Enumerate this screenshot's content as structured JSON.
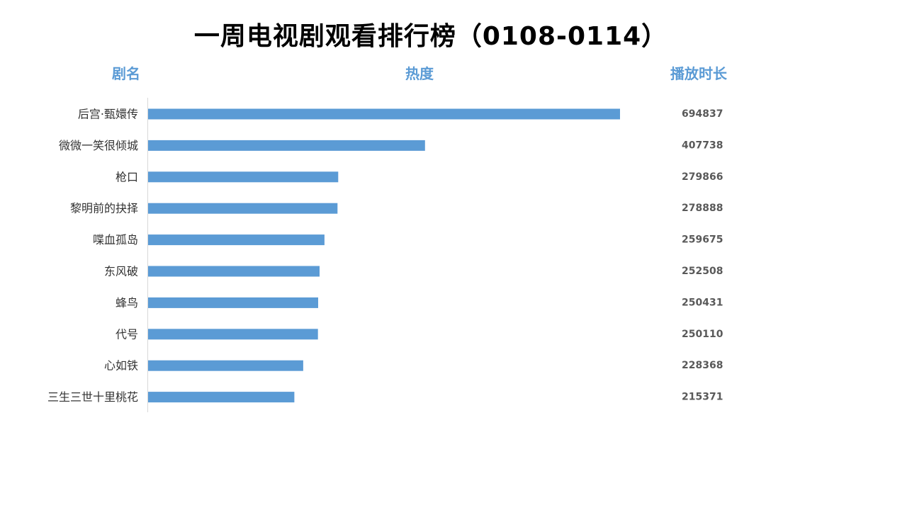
{
  "title": "一周电视剧观看排行榜（0108-0114）",
  "headers": {
    "name": "剧名",
    "heat": "热度",
    "duration": "播放时长"
  },
  "colors": {
    "bar": "#5b9bd5",
    "header": "#5b9bd5",
    "axis": "#d9d9d9"
  },
  "chart_data": {
    "type": "bar",
    "orientation": "horizontal",
    "categories": [
      "后宫·甄嬛传",
      "微微一笑很倾城",
      "枪口",
      "黎明前的抉择",
      "喋血孤岛",
      "东风破",
      "蜂鸟",
      "代号",
      "心如铁",
      "三生三世十里桃花"
    ],
    "values": [
      694837,
      407738,
      279866,
      278888,
      259675,
      252508,
      250431,
      250110,
      228368,
      215371
    ],
    "data_labels": [
      "694837",
      "407738",
      "279866",
      "278888",
      "259675",
      "252508",
      "250431",
      "250110",
      "228368",
      "215371"
    ],
    "xlim": [
      0,
      694837
    ],
    "grid": false,
    "legend": "none"
  }
}
